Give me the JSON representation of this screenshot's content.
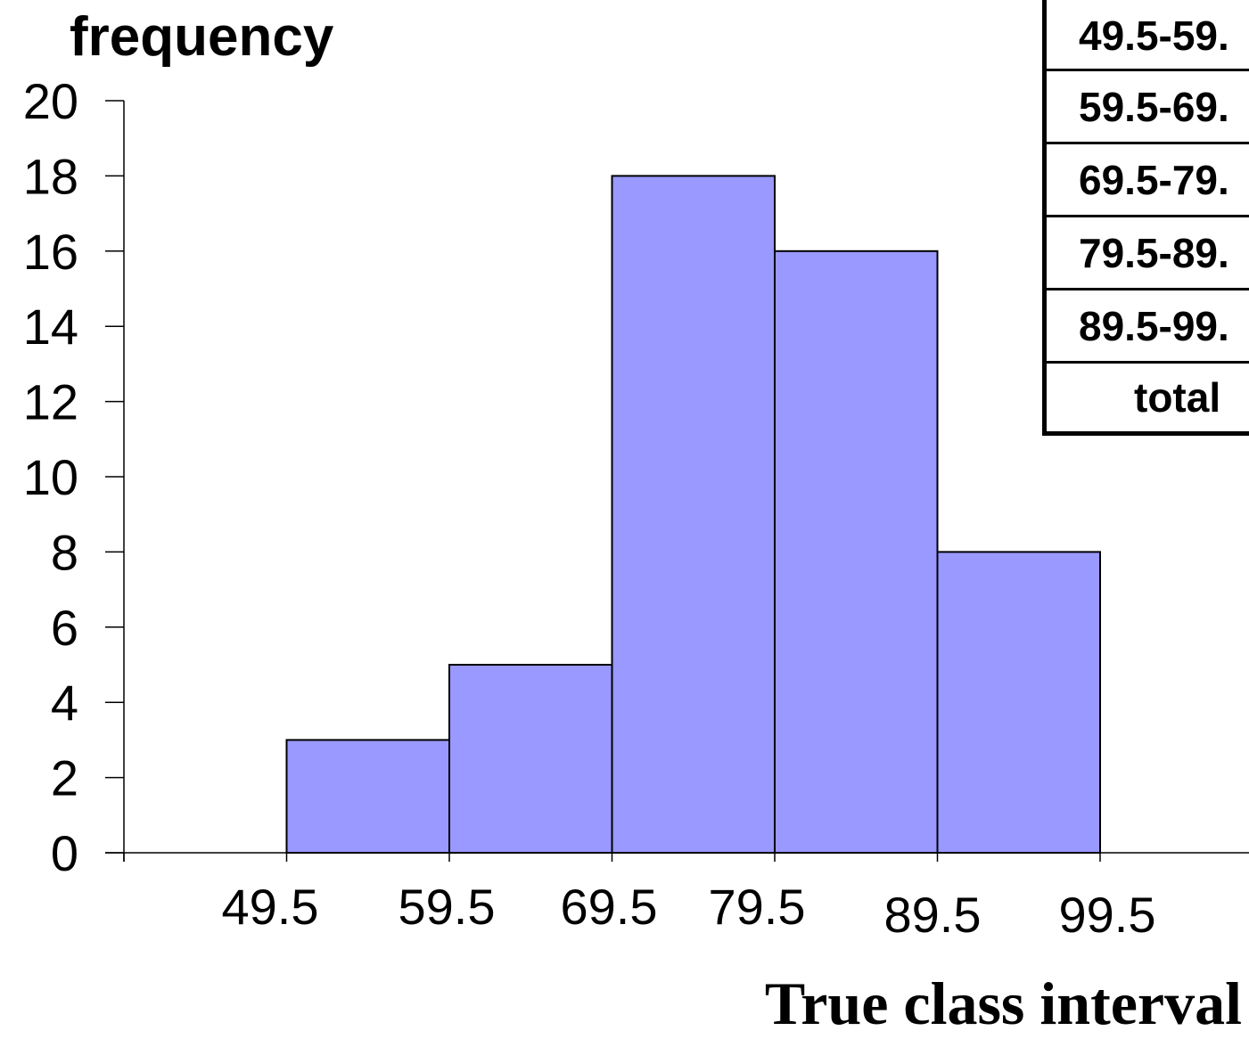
{
  "chart_data": {
    "type": "bar",
    "subtype": "histogram",
    "ylabel": "frequency",
    "xlabel": "True class interval",
    "ylim": [
      0,
      20
    ],
    "yticks": [
      0,
      2,
      4,
      6,
      8,
      10,
      12,
      14,
      16,
      18,
      20
    ],
    "xlim": [
      39.5,
      109.5
    ],
    "xtick_labels": [
      "49.5",
      "59.5",
      "69.5",
      "79.5",
      "89.5",
      "99.5"
    ],
    "bins": [
      {
        "from": 49.5,
        "to": 59.5,
        "value": 3
      },
      {
        "from": 59.5,
        "to": 69.5,
        "value": 5
      },
      {
        "from": 69.5,
        "to": 79.5,
        "value": 18
      },
      {
        "from": 79.5,
        "to": 89.5,
        "value": 16
      },
      {
        "from": 89.5,
        "to": 99.5,
        "value": 8
      }
    ],
    "bar_color": "#9999ff",
    "edge_color": "#000000",
    "grid": false
  },
  "side_table": {
    "rows": [
      "49.5-59.",
      "59.5-69.",
      "69.5-79.",
      "79.5-89.",
      "89.5-99.",
      "total"
    ]
  }
}
